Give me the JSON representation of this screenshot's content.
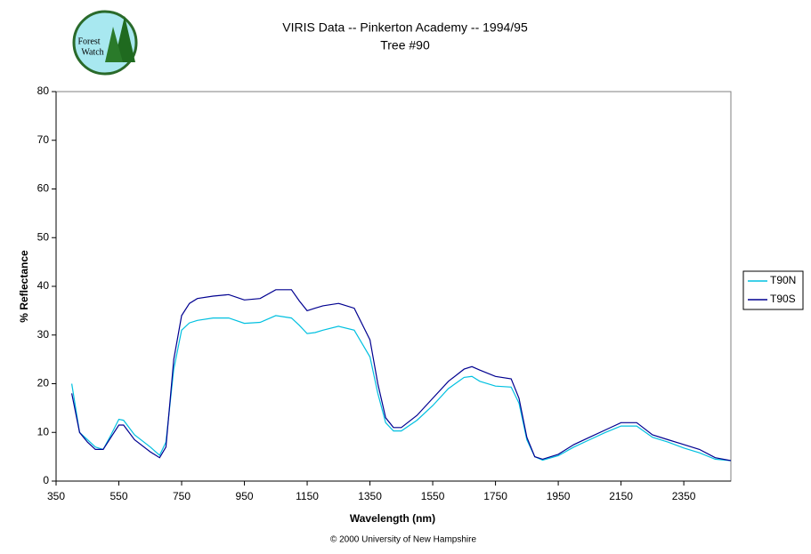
{
  "chart_data": {
    "type": "line",
    "title": "VIRIS Data -- Pinkerton Academy -- 1994/95",
    "subtitle": "Tree #90",
    "logo_text": [
      "Forest",
      "Watch"
    ],
    "footer": "© 2000 University of New Hampshire",
    "xlabel": "Wavelength (nm)",
    "ylabel": "% Reflectance",
    "x": [
      400,
      425,
      450,
      475,
      500,
      525,
      550,
      565,
      600,
      650,
      680,
      700,
      725,
      750,
      775,
      800,
      850,
      900,
      950,
      1000,
      1050,
      1100,
      1125,
      1150,
      1175,
      1200,
      1250,
      1300,
      1350,
      1375,
      1400,
      1425,
      1450,
      1500,
      1550,
      1600,
      1650,
      1675,
      1700,
      1750,
      1800,
      1825,
      1850,
      1875,
      1900,
      1950,
      2000,
      2050,
      2100,
      2150,
      2200,
      2250,
      2300,
      2350,
      2400,
      2450,
      2500
    ],
    "series": [
      {
        "name": "T90N",
        "color": "#00c0e0",
        "values": [
          20,
          10,
          8.5,
          7,
          6.5,
          9.5,
          12.7,
          12.5,
          9.5,
          7,
          5.3,
          8,
          23,
          31,
          32.5,
          33,
          33.5,
          33.5,
          32.4,
          32.6,
          34,
          33.5,
          32,
          30.3,
          30.5,
          31,
          31.8,
          31,
          25.5,
          18,
          12,
          10.3,
          10.3,
          12.5,
          15.5,
          19,
          21.3,
          21.5,
          20.5,
          19.5,
          19.3,
          16,
          8.5,
          5,
          4.3,
          5.2,
          7,
          8.5,
          10,
          11.3,
          11.3,
          9,
          8,
          6.8,
          5.8,
          4.5,
          4.2
        ]
      },
      {
        "name": "T90S",
        "color": "#000090",
        "values": [
          18,
          10,
          8,
          6.5,
          6.5,
          9,
          11.5,
          11.5,
          8.5,
          6,
          4.8,
          7,
          25,
          34,
          36.5,
          37.5,
          38,
          38.3,
          37.2,
          37.5,
          39.3,
          39.3,
          37,
          35,
          35.5,
          36,
          36.5,
          35.5,
          29,
          20,
          13,
          11,
          11,
          13.5,
          17,
          20.5,
          23,
          23.5,
          22.8,
          21.5,
          21,
          17,
          9,
          5,
          4.5,
          5.5,
          7.5,
          9,
          10.5,
          12,
          12,
          9.5,
          8.5,
          7.5,
          6.5,
          4.8,
          4.2
        ]
      }
    ],
    "xlim": [
      350,
      2500
    ],
    "xticks": [
      350,
      550,
      750,
      950,
      1150,
      1350,
      1550,
      1750,
      1950,
      2150,
      2350
    ],
    "ylim": [
      0,
      80
    ],
    "yticks": [
      0,
      10,
      20,
      30,
      40,
      50,
      60,
      70,
      80
    ],
    "grid": false,
    "legend": "right"
  }
}
